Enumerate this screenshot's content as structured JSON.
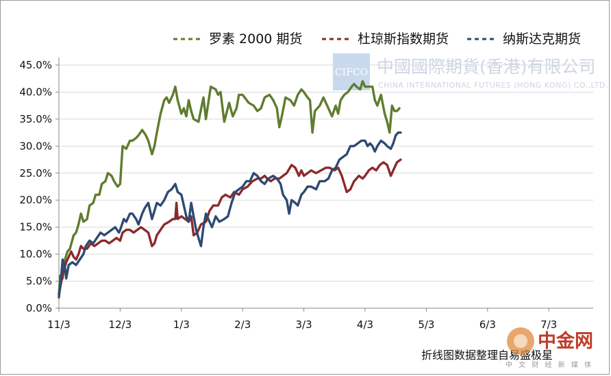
{
  "chart_data": {
    "type": "line",
    "ylim": [
      0,
      0.45
    ],
    "yticks": [
      "0.0%",
      "5.0%",
      "10.0%",
      "15.0%",
      "20.0%",
      "25.0%",
      "30.0%",
      "35.0%",
      "40.0%",
      "45.0%"
    ],
    "xticks": [
      "11/3",
      "12/3",
      "1/3",
      "2/3",
      "3/3",
      "4/3",
      "5/3",
      "6/3",
      "7/3"
    ],
    "legend_position": "top-right",
    "series": [
      {
        "name": "罗素 2000 期货",
        "color": "#5f7c2e",
        "points": [
          [
            0,
            0.025
          ],
          [
            0.02,
            0.06
          ],
          [
            0.06,
            0.055
          ],
          [
            0.1,
            0.09
          ],
          [
            0.14,
            0.105
          ],
          [
            0.18,
            0.11
          ],
          [
            0.24,
            0.135
          ],
          [
            0.28,
            0.14
          ],
          [
            0.32,
            0.155
          ],
          [
            0.36,
            0.175
          ],
          [
            0.4,
            0.16
          ],
          [
            0.46,
            0.165
          ],
          [
            0.5,
            0.19
          ],
          [
            0.56,
            0.195
          ],
          [
            0.6,
            0.21
          ],
          [
            0.66,
            0.21
          ],
          [
            0.7,
            0.23
          ],
          [
            0.76,
            0.235
          ],
          [
            0.8,
            0.25
          ],
          [
            0.86,
            0.245
          ],
          [
            0.9,
            0.235
          ],
          [
            0.96,
            0.225
          ],
          [
            1.0,
            0.23
          ],
          [
            1.04,
            0.3
          ],
          [
            1.1,
            0.295
          ],
          [
            1.16,
            0.31
          ],
          [
            1.2,
            0.31
          ],
          [
            1.26,
            0.315
          ],
          [
            1.3,
            0.32
          ],
          [
            1.36,
            0.33
          ],
          [
            1.42,
            0.32
          ],
          [
            1.46,
            0.31
          ],
          [
            1.52,
            0.285
          ],
          [
            1.56,
            0.3
          ],
          [
            1.6,
            0.325
          ],
          [
            1.66,
            0.36
          ],
          [
            1.72,
            0.385
          ],
          [
            1.76,
            0.39
          ],
          [
            1.8,
            0.38
          ],
          [
            1.86,
            0.395
          ],
          [
            1.9,
            0.41
          ],
          [
            1.94,
            0.385
          ],
          [
            2.0,
            0.36
          ],
          [
            2.04,
            0.37
          ],
          [
            2.08,
            0.355
          ],
          [
            2.12,
            0.385
          ],
          [
            2.16,
            0.365
          ],
          [
            2.2,
            0.35
          ],
          [
            2.28,
            0.345
          ],
          [
            2.36,
            0.39
          ],
          [
            2.4,
            0.35
          ],
          [
            2.44,
            0.38
          ],
          [
            2.48,
            0.41
          ],
          [
            2.56,
            0.405
          ],
          [
            2.6,
            0.395
          ],
          [
            2.64,
            0.4
          ],
          [
            2.7,
            0.345
          ],
          [
            2.78,
            0.38
          ],
          [
            2.84,
            0.355
          ],
          [
            2.9,
            0.37
          ],
          [
            2.94,
            0.395
          ],
          [
            3.0,
            0.395
          ],
          [
            3.1,
            0.38
          ],
          [
            3.18,
            0.375
          ],
          [
            3.24,
            0.365
          ],
          [
            3.3,
            0.37
          ],
          [
            3.36,
            0.39
          ],
          [
            3.44,
            0.395
          ],
          [
            3.5,
            0.385
          ],
          [
            3.56,
            0.37
          ],
          [
            3.6,
            0.335
          ],
          [
            3.64,
            0.355
          ],
          [
            3.7,
            0.39
          ],
          [
            3.78,
            0.385
          ],
          [
            3.84,
            0.375
          ],
          [
            3.9,
            0.395
          ],
          [
            3.96,
            0.405
          ],
          [
            4.0,
            0.4
          ],
          [
            4.06,
            0.39
          ],
          [
            4.1,
            0.385
          ],
          [
            4.14,
            0.325
          ],
          [
            4.18,
            0.365
          ],
          [
            4.26,
            0.375
          ],
          [
            4.32,
            0.39
          ],
          [
            4.4,
            0.37
          ],
          [
            4.46,
            0.355
          ],
          [
            4.52,
            0.375
          ],
          [
            4.56,
            0.36
          ],
          [
            4.6,
            0.385
          ],
          [
            4.66,
            0.395
          ],
          [
            4.72,
            0.4
          ],
          [
            4.78,
            0.41
          ],
          [
            4.82,
            0.415
          ],
          [
            4.86,
            0.41
          ],
          [
            4.92,
            0.405
          ],
          [
            4.96,
            0.42
          ],
          [
            5.0,
            0.41
          ],
          [
            5.06,
            0.41
          ],
          [
            5.12,
            0.41
          ],
          [
            5.16,
            0.385
          ],
          [
            5.2,
            0.375
          ],
          [
            5.26,
            0.395
          ],
          [
            5.32,
            0.36
          ],
          [
            5.36,
            0.345
          ],
          [
            5.4,
            0.325
          ],
          [
            5.44,
            0.375
          ],
          [
            5.48,
            0.365
          ],
          [
            5.52,
            0.365
          ],
          [
            5.56,
            0.37
          ]
        ]
      },
      {
        "name": "杜琼斯指数期货",
        "color": "#8b2a2c",
        "points": [
          [
            0,
            0.025
          ],
          [
            0.04,
            0.05
          ],
          [
            0.08,
            0.07
          ],
          [
            0.12,
            0.085
          ],
          [
            0.16,
            0.095
          ],
          [
            0.2,
            0.105
          ],
          [
            0.24,
            0.095
          ],
          [
            0.28,
            0.09
          ],
          [
            0.32,
            0.1
          ],
          [
            0.36,
            0.115
          ],
          [
            0.4,
            0.11
          ],
          [
            0.46,
            0.11
          ],
          [
            0.52,
            0.12
          ],
          [
            0.58,
            0.115
          ],
          [
            0.64,
            0.12
          ],
          [
            0.7,
            0.125
          ],
          [
            0.76,
            0.125
          ],
          [
            0.82,
            0.12
          ],
          [
            0.88,
            0.125
          ],
          [
            0.94,
            0.13
          ],
          [
            1.0,
            0.125
          ],
          [
            1.04,
            0.14
          ],
          [
            1.1,
            0.145
          ],
          [
            1.16,
            0.145
          ],
          [
            1.22,
            0.14
          ],
          [
            1.28,
            0.145
          ],
          [
            1.34,
            0.15
          ],
          [
            1.4,
            0.145
          ],
          [
            1.46,
            0.14
          ],
          [
            1.52,
            0.115
          ],
          [
            1.56,
            0.12
          ],
          [
            1.6,
            0.135
          ],
          [
            1.66,
            0.145
          ],
          [
            1.72,
            0.155
          ],
          [
            1.8,
            0.16
          ],
          [
            1.86,
            0.165
          ],
          [
            1.9,
            0.165
          ],
          [
            1.92,
            0.195
          ],
          [
            1.94,
            0.165
          ],
          [
            2.0,
            0.17
          ],
          [
            2.06,
            0.165
          ],
          [
            2.12,
            0.16
          ],
          [
            2.16,
            0.17
          ],
          [
            2.2,
            0.135
          ],
          [
            2.26,
            0.14
          ],
          [
            2.32,
            0.155
          ],
          [
            2.4,
            0.16
          ],
          [
            2.46,
            0.18
          ],
          [
            2.52,
            0.19
          ],
          [
            2.6,
            0.19
          ],
          [
            2.66,
            0.205
          ],
          [
            2.72,
            0.21
          ],
          [
            2.8,
            0.205
          ],
          [
            2.86,
            0.215
          ],
          [
            2.94,
            0.21
          ],
          [
            3.0,
            0.22
          ],
          [
            3.08,
            0.225
          ],
          [
            3.16,
            0.235
          ],
          [
            3.24,
            0.24
          ],
          [
            3.3,
            0.24
          ],
          [
            3.36,
            0.245
          ],
          [
            3.4,
            0.24
          ],
          [
            3.46,
            0.235
          ],
          [
            3.52,
            0.24
          ],
          [
            3.6,
            0.24
          ],
          [
            3.66,
            0.245
          ],
          [
            3.72,
            0.25
          ],
          [
            3.8,
            0.265
          ],
          [
            3.86,
            0.26
          ],
          [
            3.92,
            0.245
          ],
          [
            3.96,
            0.255
          ],
          [
            4.0,
            0.245
          ],
          [
            4.06,
            0.25
          ],
          [
            4.12,
            0.255
          ],
          [
            4.2,
            0.25
          ],
          [
            4.28,
            0.255
          ],
          [
            4.36,
            0.26
          ],
          [
            4.42,
            0.26
          ],
          [
            4.5,
            0.255
          ],
          [
            4.56,
            0.26
          ],
          [
            4.62,
            0.245
          ],
          [
            4.7,
            0.215
          ],
          [
            4.76,
            0.22
          ],
          [
            4.82,
            0.235
          ],
          [
            4.9,
            0.245
          ],
          [
            4.96,
            0.24
          ],
          [
            5.0,
            0.245
          ],
          [
            5.06,
            0.255
          ],
          [
            5.12,
            0.26
          ],
          [
            5.18,
            0.255
          ],
          [
            5.24,
            0.265
          ],
          [
            5.3,
            0.27
          ],
          [
            5.36,
            0.265
          ],
          [
            5.42,
            0.245
          ],
          [
            5.46,
            0.255
          ],
          [
            5.52,
            0.27
          ],
          [
            5.58,
            0.275
          ]
        ]
      },
      {
        "name": "纳斯达克期货",
        "color": "#2e4a72",
        "points": [
          [
            0,
            0.02
          ],
          [
            0.03,
            0.05
          ],
          [
            0.06,
            0.09
          ],
          [
            0.1,
            0.075
          ],
          [
            0.12,
            0.055
          ],
          [
            0.16,
            0.08
          ],
          [
            0.22,
            0.085
          ],
          [
            0.28,
            0.08
          ],
          [
            0.34,
            0.09
          ],
          [
            0.4,
            0.1
          ],
          [
            0.44,
            0.115
          ],
          [
            0.5,
            0.125
          ],
          [
            0.56,
            0.12
          ],
          [
            0.62,
            0.13
          ],
          [
            0.68,
            0.14
          ],
          [
            0.74,
            0.135
          ],
          [
            0.8,
            0.14
          ],
          [
            0.86,
            0.145
          ],
          [
            0.92,
            0.15
          ],
          [
            0.98,
            0.14
          ],
          [
            1.0,
            0.145
          ],
          [
            1.06,
            0.165
          ],
          [
            1.1,
            0.16
          ],
          [
            1.16,
            0.175
          ],
          [
            1.2,
            0.175
          ],
          [
            1.26,
            0.165
          ],
          [
            1.3,
            0.155
          ],
          [
            1.36,
            0.175
          ],
          [
            1.4,
            0.185
          ],
          [
            1.46,
            0.195
          ],
          [
            1.52,
            0.165
          ],
          [
            1.56,
            0.18
          ],
          [
            1.6,
            0.195
          ],
          [
            1.66,
            0.19
          ],
          [
            1.72,
            0.2
          ],
          [
            1.78,
            0.215
          ],
          [
            1.84,
            0.22
          ],
          [
            1.9,
            0.23
          ],
          [
            1.94,
            0.215
          ],
          [
            2.0,
            0.21
          ],
          [
            2.04,
            0.19
          ],
          [
            2.08,
            0.17
          ],
          [
            2.12,
            0.16
          ],
          [
            2.16,
            0.195
          ],
          [
            2.2,
            0.17
          ],
          [
            2.24,
            0.145
          ],
          [
            2.28,
            0.13
          ],
          [
            2.32,
            0.115
          ],
          [
            2.36,
            0.15
          ],
          [
            2.4,
            0.175
          ],
          [
            2.46,
            0.16
          ],
          [
            2.5,
            0.15
          ],
          [
            2.56,
            0.17
          ],
          [
            2.62,
            0.16
          ],
          [
            2.7,
            0.165
          ],
          [
            2.76,
            0.17
          ],
          [
            2.82,
            0.195
          ],
          [
            2.88,
            0.215
          ],
          [
            2.94,
            0.22
          ],
          [
            3.0,
            0.225
          ],
          [
            3.06,
            0.235
          ],
          [
            3.12,
            0.235
          ],
          [
            3.18,
            0.25
          ],
          [
            3.24,
            0.245
          ],
          [
            3.3,
            0.235
          ],
          [
            3.36,
            0.23
          ],
          [
            3.42,
            0.24
          ],
          [
            3.5,
            0.245
          ],
          [
            3.56,
            0.24
          ],
          [
            3.62,
            0.23
          ],
          [
            3.66,
            0.21
          ],
          [
            3.72,
            0.2
          ],
          [
            3.76,
            0.175
          ],
          [
            3.8,
            0.2
          ],
          [
            3.86,
            0.195
          ],
          [
            3.9,
            0.19
          ],
          [
            3.96,
            0.21
          ],
          [
            4.0,
            0.215
          ],
          [
            4.06,
            0.225
          ],
          [
            4.12,
            0.225
          ],
          [
            4.2,
            0.22
          ],
          [
            4.26,
            0.235
          ],
          [
            4.34,
            0.235
          ],
          [
            4.4,
            0.24
          ],
          [
            4.46,
            0.255
          ],
          [
            4.52,
            0.26
          ],
          [
            4.58,
            0.275
          ],
          [
            4.64,
            0.28
          ],
          [
            4.7,
            0.285
          ],
          [
            4.76,
            0.3
          ],
          [
            4.82,
            0.3
          ],
          [
            4.88,
            0.305
          ],
          [
            4.94,
            0.31
          ],
          [
            5.0,
            0.31
          ],
          [
            5.04,
            0.3
          ],
          [
            5.08,
            0.305
          ],
          [
            5.12,
            0.3
          ],
          [
            5.16,
            0.29
          ],
          [
            5.2,
            0.3
          ],
          [
            5.26,
            0.31
          ],
          [
            5.32,
            0.305
          ],
          [
            5.36,
            0.3
          ],
          [
            5.42,
            0.295
          ],
          [
            5.46,
            0.305
          ],
          [
            5.5,
            0.32
          ],
          [
            5.54,
            0.325
          ],
          [
            5.58,
            0.325
          ]
        ]
      }
    ]
  },
  "watermark": {
    "logo": "CIFCO",
    "name_cn": "中國國際期貨(香港)有限公司",
    "name_en": "CHINA INTERNATIONAL FUTURES (HONG KONG) CO.,LTD."
  },
  "caption": "折线图数据整理自易盛极星",
  "site_logo": {
    "big": "中金网",
    "small": "中 文 财 经 新 媒 体"
  }
}
